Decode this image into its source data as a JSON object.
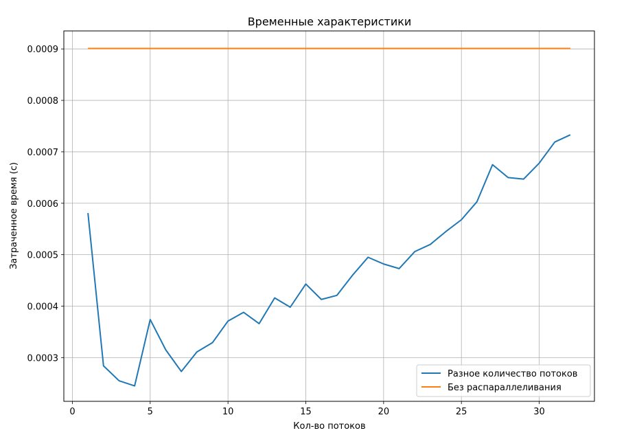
{
  "chart_data": {
    "type": "line",
    "title": "Временные характеристики",
    "xlabel": "Кол-во потоков",
    "ylabel": "Затраченное время (с)",
    "xlim": [
      -0.55,
      33.55
    ],
    "ylim": [
      0.000215,
      0.000935
    ],
    "xticks": [
      0,
      5,
      10,
      15,
      20,
      25,
      30
    ],
    "xtick_labels": [
      "0",
      "5",
      "10",
      "15",
      "20",
      "25",
      "30"
    ],
    "yticks": [
      0.0003,
      0.0004,
      0.0005,
      0.0006,
      0.0007,
      0.0008,
      0.0009
    ],
    "ytick_labels": [
      "0.0003",
      "0.0004",
      "0.0005",
      "0.0006",
      "0.0007",
      "0.0008",
      "0.0009"
    ],
    "grid": true,
    "legend_position": "lower-right",
    "series": [
      {
        "name": "Разное количество потоков",
        "color": "#1f77b4",
        "x": [
          1,
          2,
          3,
          4,
          5,
          6,
          7,
          8,
          9,
          10,
          11,
          12,
          13,
          14,
          15,
          16,
          17,
          18,
          19,
          20,
          21,
          22,
          23,
          24,
          25,
          26,
          27,
          28,
          29,
          30,
          31,
          32
        ],
        "values": [
          0.000581,
          0.000284,
          0.000255,
          0.000245,
          0.000374,
          0.000315,
          0.000273,
          0.000311,
          0.000329,
          0.000371,
          0.000388,
          0.000366,
          0.000416,
          0.000398,
          0.000443,
          0.000413,
          0.000421,
          0.00046,
          0.000495,
          0.000482,
          0.000473,
          0.000506,
          0.00052,
          0.000545,
          0.000568,
          0.000603,
          0.000675,
          0.00065,
          0.000647,
          0.000678,
          0.000719,
          0.000733
        ]
      },
      {
        "name": "Без распараллеливания",
        "color": "#ff7f0e",
        "x": [
          1,
          2,
          3,
          4,
          5,
          6,
          7,
          8,
          9,
          10,
          11,
          12,
          13,
          14,
          15,
          16,
          17,
          18,
          19,
          20,
          21,
          22,
          23,
          24,
          25,
          26,
          27,
          28,
          29,
          30,
          31,
          32
        ],
        "values": [
          0.000901,
          0.000901,
          0.000901,
          0.000901,
          0.000901,
          0.000901,
          0.000901,
          0.000901,
          0.000901,
          0.000901,
          0.000901,
          0.000901,
          0.000901,
          0.000901,
          0.000901,
          0.000901,
          0.000901,
          0.000901,
          0.000901,
          0.000901,
          0.000901,
          0.000901,
          0.000901,
          0.000901,
          0.000901,
          0.000901,
          0.000901,
          0.000901,
          0.000901,
          0.000901,
          0.000901,
          0.000901
        ]
      }
    ]
  }
}
